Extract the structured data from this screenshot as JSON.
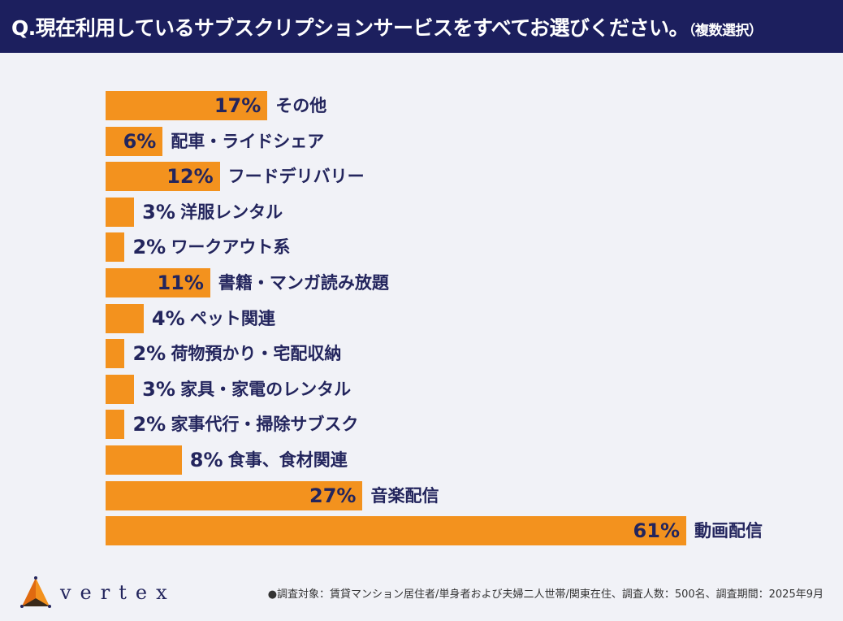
{
  "header": {
    "title": "Q.現在利用しているサブスクリプションサービスをすべてお選びください。",
    "note": "（複数選択）"
  },
  "colors": {
    "header_bg": "#1c1f5e",
    "bar": "#f3921e",
    "text": "#23255d",
    "background": "#f1f2f7"
  },
  "chart_data": {
    "type": "bar",
    "orientation": "horizontal",
    "unit": "%",
    "categories": [
      "その他",
      "配車・ライドシェア",
      "フードデリバリー",
      "洋服レンタル",
      "ワークアウト系",
      "書籍・マンガ読み放題",
      "ペット関連",
      "荷物預かり・宅配収納",
      "家具・家電のレンタル",
      "家事代行・掃除サブスク",
      "食事、食材関連",
      "音楽配信",
      "動画配信"
    ],
    "values": [
      17,
      6,
      12,
      3,
      2,
      11,
      4,
      2,
      3,
      2,
      8,
      27,
      61
    ],
    "labels": [
      "17%",
      "6%",
      "12%",
      "3%",
      "2%",
      "11%",
      "4%",
      "2%",
      "3%",
      "2%",
      "8%",
      "27%",
      "61%"
    ],
    "label_inside": [
      true,
      true,
      true,
      false,
      false,
      true,
      false,
      false,
      false,
      false,
      false,
      true,
      true
    ],
    "xlim": [
      0,
      61
    ],
    "grid": false
  },
  "logo": {
    "text": "vertex"
  },
  "footnote": "●調査対象：賃貸マンション居住者/単身者および夫婦二人世帯/関東在住、調査人数：500名、調査期間：2025年9月"
}
